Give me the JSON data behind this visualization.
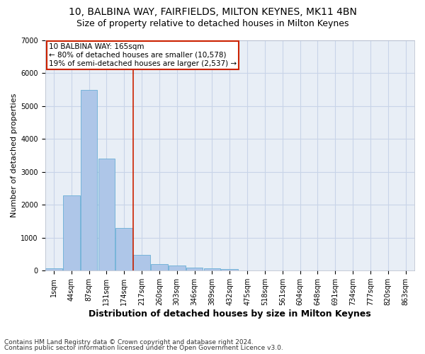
{
  "title1": "10, BALBINA WAY, FAIRFIELDS, MILTON KEYNES, MK11 4BN",
  "title2": "Size of property relative to detached houses in Milton Keynes",
  "xlabel": "Distribution of detached houses by size in Milton Keynes",
  "ylabel": "Number of detached properties",
  "footer1": "Contains HM Land Registry data © Crown copyright and database right 2024.",
  "footer2": "Contains public sector information licensed under the Open Government Licence v3.0.",
  "annotation_line1": "10 BALBINA WAY: 165sqm",
  "annotation_line2": "← 80% of detached houses are smaller (10,578)",
  "annotation_line3": "19% of semi-detached houses are larger (2,537) →",
  "bar_color": "#aec6e8",
  "bar_edge_color": "#6aaed6",
  "grid_color": "#c8d4e8",
  "background_color": "#e8eef6",
  "red_line_color": "#cc2200",
  "annotation_box_color": "#cc2200",
  "bin_labels": [
    "1sqm",
    "44sqm",
    "87sqm",
    "131sqm",
    "174sqm",
    "217sqm",
    "260sqm",
    "303sqm",
    "346sqm",
    "389sqm",
    "432sqm",
    "475sqm",
    "518sqm",
    "561sqm",
    "604sqm",
    "648sqm",
    "691sqm",
    "734sqm",
    "777sqm",
    "820sqm",
    "863sqm"
  ],
  "bar_values": [
    75,
    2280,
    5480,
    3400,
    1290,
    470,
    200,
    165,
    100,
    65,
    50,
    0,
    0,
    0,
    0,
    0,
    0,
    0,
    0,
    0,
    0
  ],
  "ylim": [
    0,
    7000
  ],
  "yticks": [
    0,
    1000,
    2000,
    3000,
    4000,
    5000,
    6000,
    7000
  ],
  "red_line_x": 4.5,
  "title1_fontsize": 10,
  "title2_fontsize": 9,
  "xlabel_fontsize": 9,
  "ylabel_fontsize": 8,
  "tick_fontsize": 7,
  "footer_fontsize": 6.5,
  "annotation_fontsize": 7.5
}
